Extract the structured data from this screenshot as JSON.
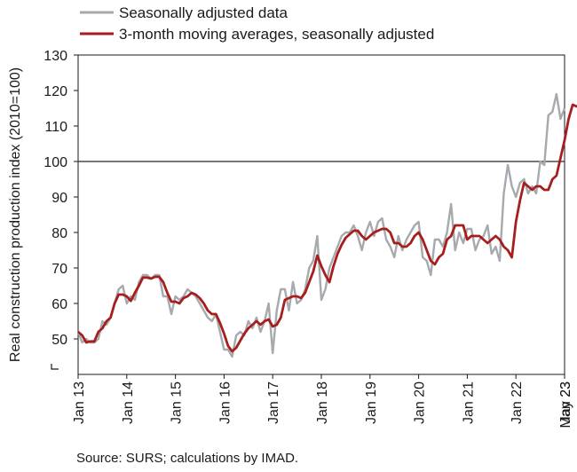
{
  "chart_data": {
    "type": "line",
    "ylabel": "Real construction production index (2010=100)",
    "ylim": [
      40,
      130
    ],
    "yticks": [
      50,
      60,
      70,
      80,
      90,
      100,
      110,
      120,
      130
    ],
    "reference_line": 100,
    "x_ticks": [
      "Jan 13",
      "Jan 14",
      "Jan 15",
      "Jan 16",
      "Jan 17",
      "Jan 18",
      "Jan 19",
      "Jan 20",
      "Jan 21",
      "Jan 22",
      "Jan 23",
      "May 23"
    ],
    "legend_position": "top-left",
    "series": [
      {
        "name": "Seasonally adjusted data",
        "color": "#a6a9ad",
        "values": [
          52,
          49,
          50,
          49,
          49,
          50,
          55,
          54,
          56,
          60,
          64,
          65,
          60,
          62,
          61,
          66,
          68,
          68,
          67,
          68,
          68,
          62,
          62,
          57,
          62,
          61,
          62,
          64,
          63,
          62,
          60,
          58,
          56,
          55,
          57,
          52,
          47,
          47,
          45,
          51,
          52,
          51,
          55,
          53,
          56,
          52,
          55,
          60,
          46,
          58,
          64,
          64,
          58,
          66,
          60,
          61,
          64,
          70,
          72,
          79,
          61,
          64,
          70,
          73,
          76,
          79,
          80,
          80,
          82,
          79,
          75,
          80,
          83,
          79,
          83,
          84,
          78,
          76,
          73,
          79,
          75,
          78,
          80,
          82,
          83,
          73,
          72,
          68,
          78,
          78,
          76,
          80,
          88,
          75,
          80,
          77,
          81,
          81,
          75,
          78,
          79,
          82,
          74,
          76,
          72,
          91,
          99,
          93,
          90,
          94,
          95,
          91,
          93,
          91,
          100,
          99,
          113,
          114,
          119,
          112,
          115
        ]
      },
      {
        "name": "3-month moving averages, seasonally adjusted",
        "color": "#a61e1e",
        "values": [
          52,
          51,
          49,
          49.3,
          49.3,
          52,
          53,
          55,
          56,
          60,
          62.5,
          62.5,
          62,
          60.7,
          63,
          65,
          67.3,
          67.3,
          67,
          67.5,
          67.5,
          66,
          63,
          60.5,
          60.5,
          60,
          61.5,
          62,
          63,
          62.5,
          61.5,
          60,
          58,
          57,
          57,
          54.5,
          51.5,
          48,
          46.5,
          47.5,
          49.5,
          51.5,
          53,
          54,
          55,
          54,
          55,
          55.5,
          53.5,
          54,
          56,
          61,
          61.5,
          62,
          62,
          61.5,
          63,
          66,
          69,
          73.5,
          70.5,
          68,
          66,
          70.5,
          74,
          76.5,
          78.5,
          79.5,
          80.5,
          80.5,
          79,
          78,
          79,
          80,
          80.5,
          81,
          81,
          80,
          77,
          77,
          76,
          76,
          77,
          79,
          80,
          78,
          75,
          72,
          71,
          73,
          74,
          78,
          79,
          82,
          82,
          82,
          78,
          79,
          79,
          79,
          78,
          77,
          78,
          79,
          78,
          76,
          75,
          73,
          83,
          89,
          94,
          93,
          92,
          93,
          93,
          92,
          92,
          95,
          96,
          101,
          106,
          112,
          116,
          115.5,
          116
        ]
      }
    ]
  },
  "source_note": "Source: SURS; calculations by IMAD."
}
